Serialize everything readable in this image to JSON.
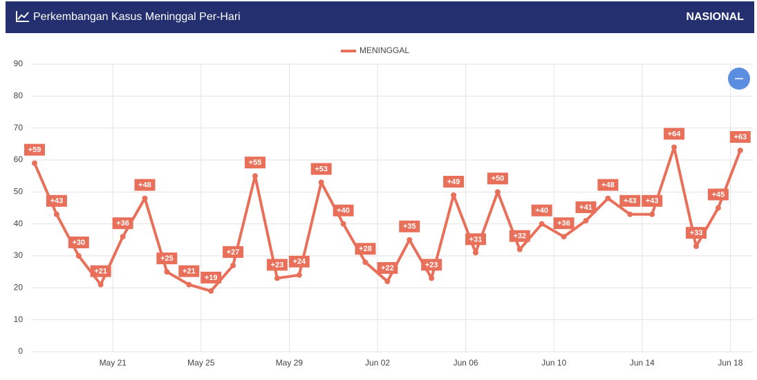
{
  "header": {
    "title": "Perkembangan Kasus Meninggal Per-Hari",
    "region": "NASIONAL"
  },
  "chart_data": {
    "type": "line",
    "categories": [
      null,
      null,
      null,
      null,
      "May 21",
      null,
      null,
      null,
      "May 25",
      null,
      null,
      null,
      "May 29",
      null,
      null,
      null,
      "Jun 02",
      null,
      null,
      null,
      "Jun 06",
      null,
      null,
      null,
      "Jun 10",
      null,
      null,
      null,
      "Jun 14",
      null,
      null,
      null,
      "Jun 18"
    ],
    "series": [
      {
        "name": "MENINGGAL",
        "color": "#e8705a",
        "values": [
          59,
          43,
          30,
          21,
          36,
          48,
          25,
          21,
          19,
          27,
          55,
          23,
          24,
          53,
          40,
          28,
          22,
          35,
          23,
          49,
          31,
          50,
          32,
          40,
          36,
          41,
          48,
          43,
          43,
          64,
          33,
          45,
          63
        ],
        "value_labels": [
          "+59",
          "+43",
          "+30",
          "+21",
          "+36",
          "+48",
          "+25",
          "+21",
          "+19",
          "+27",
          "+55",
          "+23",
          "+24",
          "+53",
          "+40",
          "+28",
          "+22",
          "+35",
          "+23",
          "+49",
          "+31",
          "+50",
          "+32",
          "+40",
          "+36",
          "+41",
          "+48",
          "+43",
          "+43",
          "+64",
          "+33",
          "+45",
          "+63"
        ]
      }
    ],
    "ylim": [
      0,
      90
    ],
    "yticks": [
      0,
      10,
      20,
      30,
      40,
      50,
      60,
      70,
      80,
      90
    ],
    "grid": true,
    "legend": "top"
  }
}
